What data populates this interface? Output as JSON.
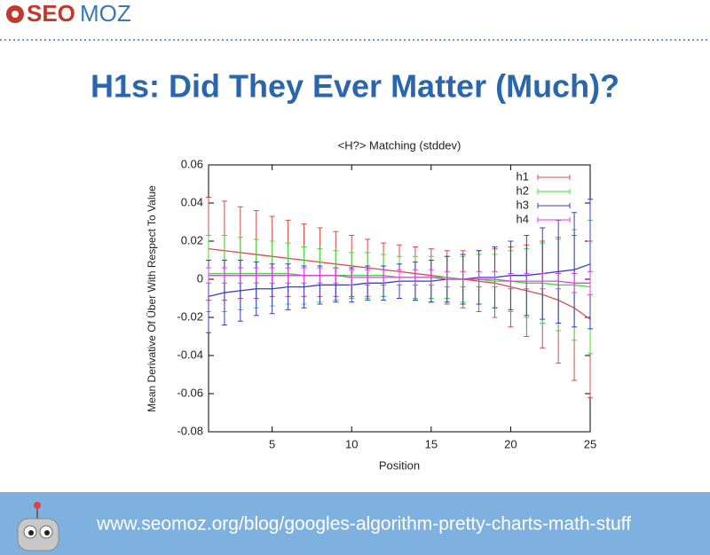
{
  "header": {
    "logo": {
      "bold": "SEO",
      "light": "MOZ"
    }
  },
  "slide_title": "H1s: Did They Ever Matter (Much)?",
  "chart_data": {
    "type": "line",
    "title": "<H?> Matching (stddev)",
    "x_label": "Position",
    "y_label": "Mean Derivative Of Über With Respect To Value",
    "x": [
      1,
      2,
      3,
      4,
      5,
      6,
      7,
      8,
      9,
      10,
      11,
      12,
      13,
      14,
      15,
      16,
      17,
      18,
      19,
      20,
      21,
      22,
      23,
      24,
      25
    ],
    "xlim": [
      1,
      25
    ],
    "xticks": [
      5,
      10,
      15,
      20,
      25
    ],
    "ylim": [
      -0.08,
      0.06
    ],
    "yticks": [
      -0.08,
      -0.06,
      -0.04,
      -0.02,
      0,
      0.02,
      0.04,
      0.06
    ],
    "legend": "upper right",
    "series": [
      {
        "name": "h1",
        "color": "#e04848",
        "values": [
          0.016,
          0.015,
          0.014,
          0.013,
          0.012,
          0.011,
          0.01,
          0.009,
          0.008,
          0.007,
          0.006,
          0.005,
          0.004,
          0.003,
          0.002,
          0.001,
          0.0,
          -0.001,
          -0.002,
          -0.004,
          -0.006,
          -0.008,
          -0.011,
          -0.015,
          -0.021
        ],
        "errors": [
          0.027,
          0.026,
          0.024,
          0.023,
          0.021,
          0.02,
          0.019,
          0.018,
          0.017,
          0.016,
          0.015,
          0.014,
          0.014,
          0.014,
          0.014,
          0.014,
          0.015,
          0.016,
          0.018,
          0.021,
          0.024,
          0.028,
          0.033,
          0.038,
          0.041
        ]
      },
      {
        "name": "h2",
        "color": "#40d840",
        "values": [
          0.003,
          0.003,
          0.003,
          0.003,
          0.003,
          0.003,
          0.002,
          0.002,
          0.002,
          0.002,
          0.002,
          0.002,
          0.001,
          0.001,
          0.001,
          0.001,
          0.0,
          0.0,
          -0.001,
          -0.001,
          -0.002,
          -0.002,
          -0.003,
          -0.003,
          -0.004
        ],
        "errors": [
          0.02,
          0.02,
          0.019,
          0.018,
          0.017,
          0.016,
          0.015,
          0.014,
          0.013,
          0.012,
          0.012,
          0.011,
          0.011,
          0.011,
          0.011,
          0.011,
          0.012,
          0.013,
          0.014,
          0.016,
          0.018,
          0.021,
          0.024,
          0.029,
          0.035
        ]
      },
      {
        "name": "h3",
        "color": "#3a3ad0",
        "values": [
          -0.009,
          -0.007,
          -0.006,
          -0.005,
          -0.005,
          -0.004,
          -0.004,
          -0.003,
          -0.003,
          -0.003,
          -0.002,
          -0.002,
          -0.001,
          -0.001,
          -0.001,
          0.0,
          0.0,
          0.001,
          0.001,
          0.002,
          0.002,
          0.003,
          0.004,
          0.005,
          0.008
        ],
        "errors": [
          0.019,
          0.017,
          0.016,
          0.014,
          0.013,
          0.012,
          0.011,
          0.01,
          0.009,
          0.009,
          0.009,
          0.009,
          0.009,
          0.01,
          0.011,
          0.012,
          0.013,
          0.014,
          0.016,
          0.018,
          0.021,
          0.024,
          0.027,
          0.03,
          0.034
        ]
      },
      {
        "name": "h4",
        "color": "#e040e0",
        "values": [
          0.002,
          0.002,
          0.002,
          0.002,
          0.002,
          0.002,
          0.002,
          0.002,
          0.002,
          0.001,
          0.001,
          0.001,
          0.001,
          0.001,
          0.001,
          0.0,
          0.0,
          0.0,
          0.0,
          -0.001,
          -0.001,
          -0.001,
          -0.001,
          -0.002,
          -0.002
        ],
        "errors": [
          0.004,
          0.004,
          0.004,
          0.004,
          0.004,
          0.004,
          0.004,
          0.004,
          0.004,
          0.004,
          0.004,
          0.004,
          0.004,
          0.004,
          0.004,
          0.004,
          0.004,
          0.004,
          0.004,
          0.004,
          0.004,
          0.004,
          0.004,
          0.005,
          0.006
        ]
      }
    ]
  },
  "footer": {
    "url": "www.seomoz.org/blog/googles-algorithm-pretty-charts-math-stuff"
  }
}
